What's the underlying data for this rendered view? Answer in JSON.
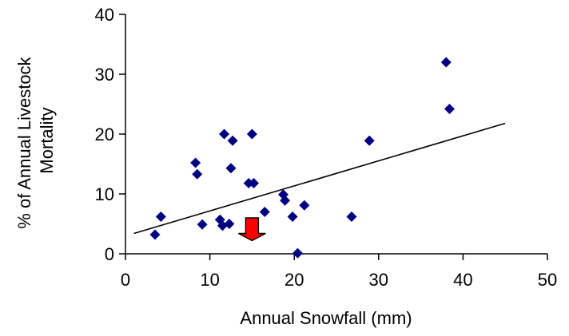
{
  "chart_data": {
    "type": "scatter",
    "title": "",
    "xlabel": "Annual Snowfall (mm)",
    "ylabel_lines": [
      "% of Annual Livestock",
      "Mortality"
    ],
    "xlim": [
      0,
      50
    ],
    "ylim": [
      0,
      40
    ],
    "x_ticks": [
      0,
      10,
      20,
      30,
      40,
      50
    ],
    "y_ticks": [
      0,
      10,
      20,
      30,
      40
    ],
    "grid": false,
    "legend": "none",
    "marker_color": "#000080",
    "arrow_color": "#ff0000",
    "series": [
      {
        "marker": "diamond",
        "points": [
          {
            "x": 3.5,
            "y": 3.2
          },
          {
            "x": 4.2,
            "y": 6.2
          },
          {
            "x": 8.3,
            "y": 15.2
          },
          {
            "x": 8.5,
            "y": 13.3
          },
          {
            "x": 9.1,
            "y": 4.9
          },
          {
            "x": 11.2,
            "y": 5.7
          },
          {
            "x": 11.5,
            "y": 4.7
          },
          {
            "x": 11.7,
            "y": 20.0
          },
          {
            "x": 12.3,
            "y": 5.0
          },
          {
            "x": 12.5,
            "y": 14.3
          },
          {
            "x": 12.7,
            "y": 18.9
          },
          {
            "x": 14.6,
            "y": 11.8
          },
          {
            "x": 15.0,
            "y": 20.0
          },
          {
            "x": 15.2,
            "y": 11.8
          },
          {
            "x": 16.5,
            "y": 7.0
          },
          {
            "x": 18.7,
            "y": 9.9
          },
          {
            "x": 18.9,
            "y": 8.9
          },
          {
            "x": 19.8,
            "y": 6.2
          },
          {
            "x": 20.4,
            "y": 0.1
          },
          {
            "x": 21.2,
            "y": 8.1
          },
          {
            "x": 26.8,
            "y": 6.2
          },
          {
            "x": 28.9,
            "y": 18.9
          },
          {
            "x": 38.0,
            "y": 32.0
          },
          {
            "x": 38.4,
            "y": 24.2
          }
        ]
      }
    ],
    "trendline": {
      "x": [
        1,
        45
      ],
      "y": [
        3.4,
        21.8
      ]
    },
    "annotation_arrow": {
      "x": 15.0,
      "y_top": 6.0,
      "y_bottom": 2.2
    }
  }
}
